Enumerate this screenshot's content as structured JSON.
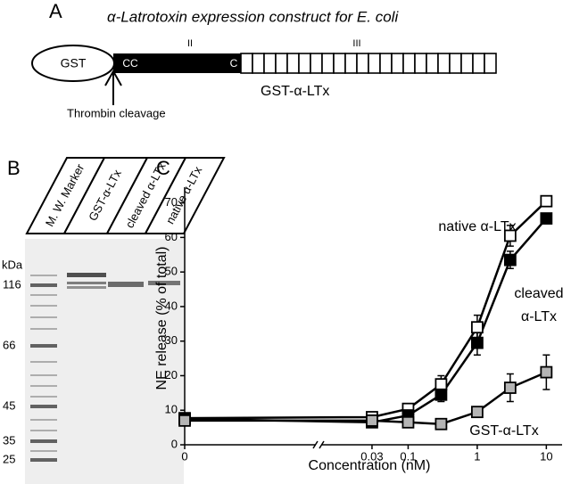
{
  "panel_a": {
    "letter": "A",
    "title": "α-Latrotoxin expression construct for E. coli",
    "gst": "GST",
    "cc": "CC",
    "c": "C",
    "domain_2": "II",
    "domain_3": "III",
    "construct": "GST-α-LTx",
    "cleavage": "Thrombin cleavage"
  },
  "panel_b": {
    "letter": "B",
    "lanes": [
      "M. W. Marker",
      "GST-α-LTx",
      "cleaved α-LTx",
      "native α-LTx"
    ],
    "unit": "kDa",
    "markers": [
      "116",
      "66",
      "45",
      "35",
      "25"
    ]
  },
  "chart_data": {
    "type": "line",
    "letter": "C",
    "x_label": "Concentration (nM)",
    "y_label": "NE release (% of total)",
    "x": [
      0,
      0.03,
      0.1,
      0.3,
      1,
      3,
      10
    ],
    "xlim": [
      0.01,
      15
    ],
    "log_x": true,
    "x_break": true,
    "xticks": [
      0,
      0.03,
      0.1,
      1,
      10
    ],
    "ylim": [
      0,
      73
    ],
    "yticks": [
      0,
      10,
      20,
      30,
      40,
      50,
      60,
      70
    ],
    "series": [
      {
        "name": "native α-LTx",
        "color": "#ffffff",
        "values": [
          7.7,
          8,
          10.4,
          17.5,
          34,
          60.5,
          70.5
        ],
        "errors": [
          0.5,
          0.5,
          1,
          2.5,
          3.5,
          3,
          1.5
        ]
      },
      {
        "name": "cleaved",
        "name_2": "α-LTx",
        "color": "#000000",
        "values": [
          7.5,
          6.5,
          8.5,
          14.5,
          29.5,
          53.5,
          65.5
        ],
        "errors": [
          0.5,
          0.5,
          1,
          2,
          3.5,
          2.5,
          1.5
        ]
      },
      {
        "name": "GST-α-LTx",
        "color": "#b5b5b5",
        "values": [
          7,
          7,
          6.5,
          6,
          9.5,
          16.5,
          21
        ],
        "errors": [
          0.5,
          0.5,
          0.5,
          0.5,
          1.5,
          4,
          5
        ]
      }
    ]
  }
}
